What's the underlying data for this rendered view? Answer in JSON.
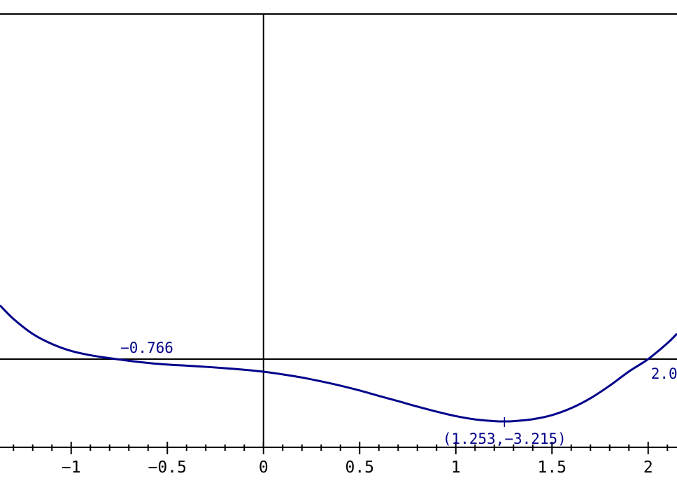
{
  "chart_data": {
    "type": "line",
    "title": "",
    "xlabel": "",
    "ylabel": "",
    "xlim": [
      -1.37,
      2.15
    ],
    "ylim": [
      -4.55,
      17.8
    ],
    "x_ticks": [
      -1,
      -0.5,
      0,
      0.5,
      1,
      1.5,
      2
    ],
    "x_tick_labels": [
      "−1",
      "−0.5",
      "0",
      "0.5",
      "1",
      "1.5",
      "2"
    ],
    "x_minor_step": 0.1,
    "grid": false,
    "colors": {
      "curve": "#00008b",
      "axes": "#000000",
      "annotation": "#00008b"
    },
    "series": [
      {
        "x": [
          -1.37,
          -1.3,
          -1.2,
          -1.1,
          -1.0,
          -0.9,
          -0.766,
          -0.6,
          -0.5,
          -0.4,
          -0.3,
          -0.2,
          -0.1,
          0.0,
          0.1,
          0.2,
          0.3,
          0.4,
          0.5,
          0.6,
          0.7,
          0.8,
          0.9,
          1.0,
          1.1,
          1.2,
          1.253,
          1.3,
          1.4,
          1.5,
          1.6,
          1.7,
          1.8,
          1.9,
          2.0,
          2.1,
          2.15
        ],
        "y": [
          2.77,
          2.07,
          1.3,
          0.78,
          0.42,
          0.2,
          0.0,
          -0.2,
          -0.28,
          -0.34,
          -0.4,
          -0.47,
          -0.55,
          -0.65,
          -0.79,
          -0.95,
          -1.15,
          -1.37,
          -1.62,
          -1.9,
          -2.17,
          -2.45,
          -2.71,
          -2.94,
          -3.11,
          -3.2,
          -3.215,
          -3.2,
          -3.1,
          -2.89,
          -2.53,
          -2.02,
          -1.37,
          -0.64,
          0.0,
          0.82,
          1.31
        ]
      }
    ],
    "annotations": [
      {
        "x": -0.766,
        "y": 0.0,
        "text": "−0.766",
        "position": "above-right"
      },
      {
        "x": 1.253,
        "y": -3.215,
        "text": "(1.253,−3.215)",
        "position": "below"
      },
      {
        "x": 2.0,
        "y": 0.0,
        "text": "2.0",
        "position": "below-right"
      }
    ]
  }
}
